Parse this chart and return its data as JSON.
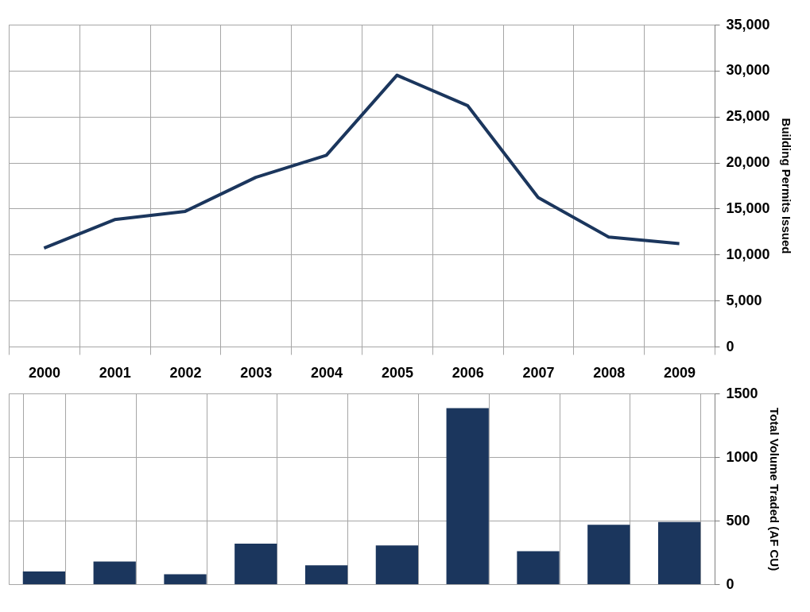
{
  "chart_data": [
    {
      "type": "line",
      "categories": [
        "2000",
        "2001",
        "2002",
        "2003",
        "2004",
        "2005",
        "2006",
        "2007",
        "2008",
        "2009"
      ],
      "series": [
        {
          "color": "#1b365d",
          "values": [
            10700,
            13800,
            14700,
            18400,
            20800,
            29500,
            26200,
            16200,
            11900,
            11200
          ]
        }
      ],
      "ylabel": "Building Permits Issued",
      "ylim": [
        0,
        35000
      ],
      "yticks": [
        0,
        {
          "value": 5000,
          "label": "5,000"
        },
        {
          "value": 10000,
          "label": "10,000"
        },
        {
          "value": 15000,
          "label": "15,000"
        },
        {
          "value": 20000,
          "label": "20,000"
        },
        {
          "value": 25000,
          "label": "25,000"
        },
        {
          "value": 30000,
          "label": "30,000"
        },
        {
          "value": 35000,
          "label": "35,000"
        }
      ],
      "grid": true,
      "marker": "none",
      "line_style": "solid",
      "legend": false
    },
    {
      "type": "bar",
      "categories": [
        "2000",
        "2001",
        "2002",
        "2003",
        "2004",
        "2005",
        "2006",
        "2007",
        "2008",
        "2009"
      ],
      "series": [
        {
          "color": "#1b365d",
          "values": [
            100,
            178,
            78,
            319,
            148,
            304,
            1385,
            259,
            467,
            489
          ]
        }
      ],
      "ylabel": "Total Volume Traded (AF CU)",
      "ylim": [
        0,
        1500
      ],
      "yticks": [
        0,
        500,
        1000,
        1500
      ],
      "grid": true,
      "tick_labels": "y",
      "legend": false
    }
  ]
}
